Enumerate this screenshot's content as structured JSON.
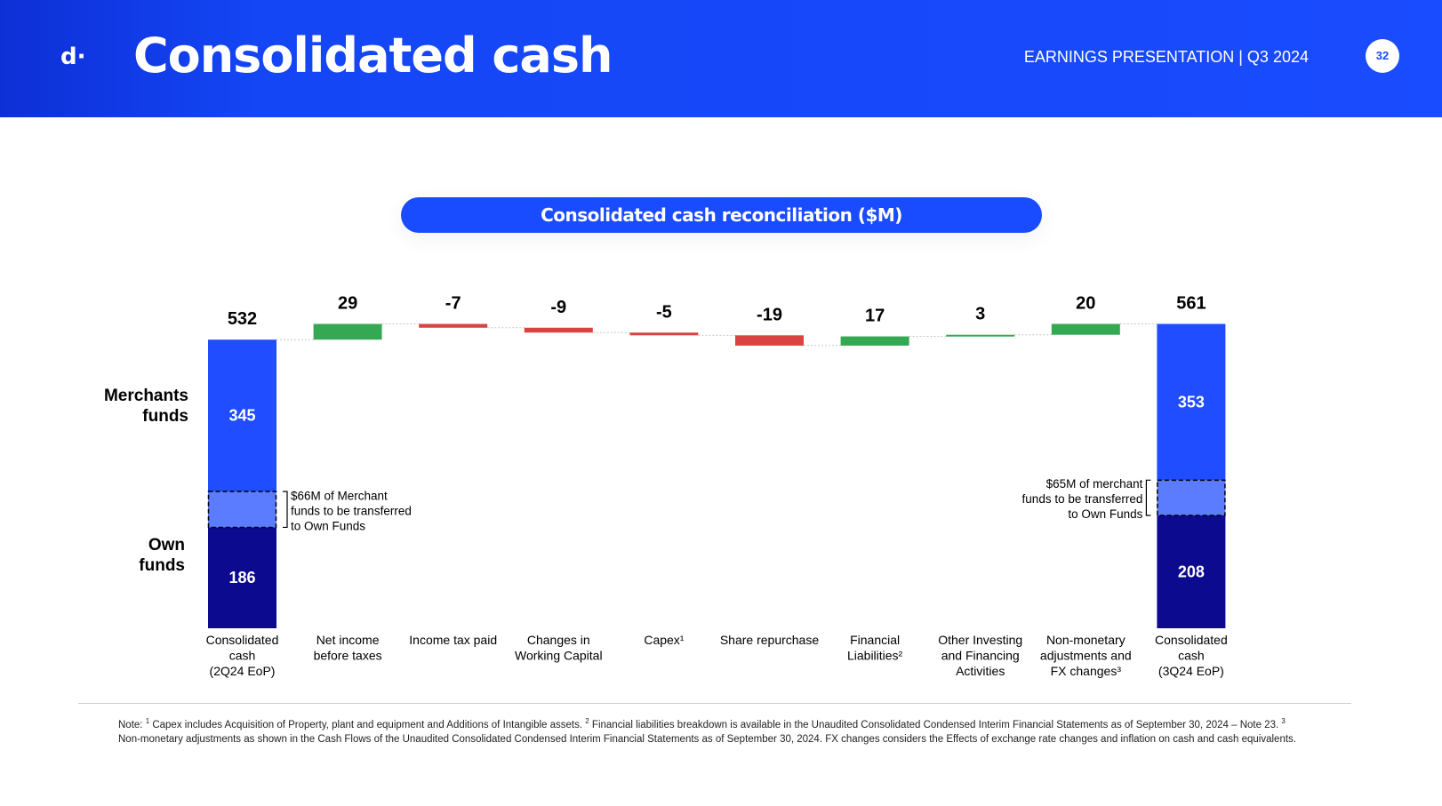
{
  "header": {
    "logo": "d·",
    "title": "Consolidated cash",
    "subtitle": "EARNINGS PRESENTATION | Q3 2024",
    "page_number": "32"
  },
  "chart_title": "Consolidated cash reconciliation ($M)",
  "row_labels": {
    "merchants": "Merchants funds",
    "own": "Own funds"
  },
  "brackets": {
    "start": [
      "$66M of Merchant",
      "funds to be transferred",
      "to Own Funds"
    ],
    "end": [
      "$65M of merchant",
      "funds to be transferred",
      "to Own Funds"
    ]
  },
  "colors": {
    "header_blue": "#1a4cff",
    "merchant_blue": "#1f4dff",
    "transfer_blue": "#5b7cff",
    "own_navy": "#0c0a8f",
    "increase_green": "#35a853",
    "decrease_red": "#d94440"
  },
  "chart_data": {
    "type": "bar",
    "subtype": "waterfall",
    "categories": [
      [
        "Consolidated",
        "cash",
        "(2Q24 EoP)"
      ],
      [
        "Net income",
        "before taxes"
      ],
      [
        "Income tax paid"
      ],
      [
        "Changes in",
        "Working Capital"
      ],
      [
        "Capex¹"
      ],
      [
        "Share repurchase"
      ],
      [
        "Financial",
        "Liabilities²"
      ],
      [
        "Other Investing",
        "and Financing",
        "Activities"
      ],
      [
        "Non-monetary",
        "adjustments and",
        "FX changes³"
      ],
      [
        "Consolidated",
        "cash",
        "(3Q24 EoP)"
      ]
    ],
    "values": [
      532,
      29,
      -7,
      -9,
      -5,
      -19,
      17,
      3,
      20,
      561
    ],
    "value_labels": [
      "532",
      "29",
      "-7",
      "-9",
      "-5",
      "-19",
      "17",
      "3",
      "20",
      "561"
    ],
    "totals": [
      {
        "index": 0,
        "own_funds": 186,
        "transfer_to_own": 66,
        "merchant_funds": 345,
        "own_label": "186",
        "merchant_label": "345"
      },
      {
        "index": 9,
        "own_funds": 208,
        "transfer_to_own": 65,
        "merchant_funds": 353,
        "own_label": "208",
        "merchant_label": "353"
      }
    ]
  },
  "footnote": {
    "prefix": "Note: ",
    "parts": [
      {
        "sup": "1",
        "text": " Capex includes Acquisition of Property, plant and equipment and Additions of Intangible assets. "
      },
      {
        "sup": "2",
        "text": " Financial liabilities breakdown is available in the Unaudited Consolidated Condensed Interim Financial Statements as of September 30, 2024 – Note 23. "
      },
      {
        "sup": "3",
        "text": " Non-monetary adjustments as shown in the Cash Flows of the Unaudited Consolidated Condensed Interim Financial Statements as of September 30, 2024. FX changes considers the Effects of exchange rate changes and inflation on cash and cash equivalents."
      }
    ]
  }
}
